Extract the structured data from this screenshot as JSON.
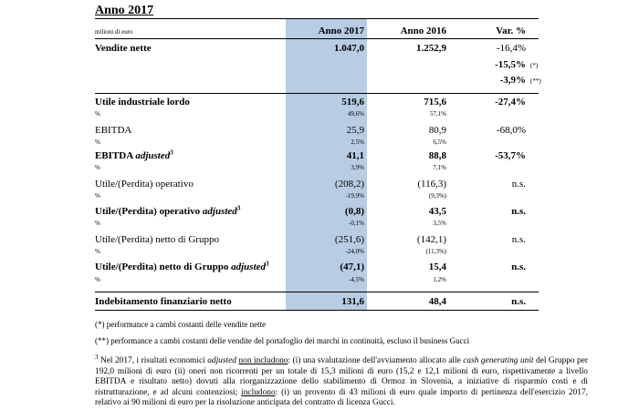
{
  "heading": "Anno 2017",
  "unit_label": "milioni di euro",
  "columns": {
    "y2017": "Anno 2017",
    "y2016": "Anno 2016",
    "var": "Var. %"
  },
  "rows": {
    "vendite": {
      "label": "Vendite nette",
      "v2017": "1.047,0",
      "v2016": "1.252,9",
      "var": "-16,4%",
      "var2": "-15,5%",
      "var2_mark": "(*)",
      "var3": "-3,9%",
      "var3_mark": "(**)"
    },
    "utile_ind": {
      "label": "Utile industriale lordo",
      "v2017": "519,6",
      "v2016": "715,6",
      "var": "-27,4%",
      "pct_label": "%",
      "pct2017": "49,6%",
      "pct2016": "57,1%"
    },
    "ebitda": {
      "label": "EBITDA",
      "v2017": "25,9",
      "v2016": "80,9",
      "var": "-68,0%",
      "pct_label": "%",
      "pct2017": "2,5%",
      "pct2016": "6,5%"
    },
    "ebitda_adj": {
      "label": "EBITDA",
      "label_adj": "adjusted",
      "sup": "3",
      "v2017": "41,1",
      "v2016": "88,8",
      "var": "-53,7%",
      "pct_label": "%",
      "pct2017": "3,9%",
      "pct2016": "7,1%"
    },
    "oper": {
      "label": "Utile/(Perdita) operativo",
      "v2017": "(208,2)",
      "v2016": "(116,3)",
      "var": "n.s.",
      "pct_label": "%",
      "pct2017": "-19,9%",
      "pct2016": "(9,3%)"
    },
    "oper_adj": {
      "label": "Utile/(Perdita) operativo",
      "label_adj": "adjusted",
      "sup": "3",
      "v2017": "(0,8)",
      "v2016": "43,5",
      "var": "n.s.",
      "pct_label": "%",
      "pct2017": "-0,1%",
      "pct2016": "3,5%"
    },
    "netto": {
      "label": "Utile/(Perdita) netto di Gruppo",
      "v2017": "(251,6)",
      "v2016": "(142,1)",
      "var": "n.s.",
      "pct_label": "%",
      "pct2017": "-24,0%",
      "pct2016": "(11,3%)"
    },
    "netto_adj": {
      "label": "Utile/(Perdita) netto di Gruppo",
      "label_adj": "adjusted",
      "sup": "3",
      "v2017": "(47,1)",
      "v2016": "15,4",
      "var": "n.s.",
      "pct_label": "%",
      "pct2017": "-4,5%",
      "pct2016": "1,2%"
    },
    "indeb": {
      "label": "Indebitamento finanziario netto",
      "v2017": "131,6",
      "v2016": "48,4",
      "var": "n.s."
    }
  },
  "notes": {
    "n1": "(*) performance a cambi costanti delle vendite nette",
    "n2": "(**) performance a cambi costanti delle vendite del portafoglio dei marchi in continuità, escluso il business Gucci"
  },
  "footnote": {
    "sup": "3",
    "p1": " Nel 2017, i risultati economici ",
    "p1_em": "adjusted",
    "p1_u": "non includono",
    "p2": ": (i) una svalutazione dell'avviamento allocato alle ",
    "p2_em": "cash generating unit",
    "p3": " del Gruppo per 192,0 milioni di euro (ii) oneri non ricorrenti per un totale di 15,3 milioni di euro (15,2 e 12,1 milioni di euro, rispettivamente a livello EBITDA e risultato netto) dovuti alla riorganizzazione dello stabilimento di Ormoz in Slovenia, a iniziative di risparmio costi e di ristrutturazione, e ad alcuni contenziosi; ",
    "p3_u": "includono",
    "p4": ": (i) un provento di 43 milioni di euro quale importo di pertinenza dell'esercizio 2017, relativo ai 90 milioni di euro per la risoluzione anticipata del contratto di licenza Gucci."
  }
}
